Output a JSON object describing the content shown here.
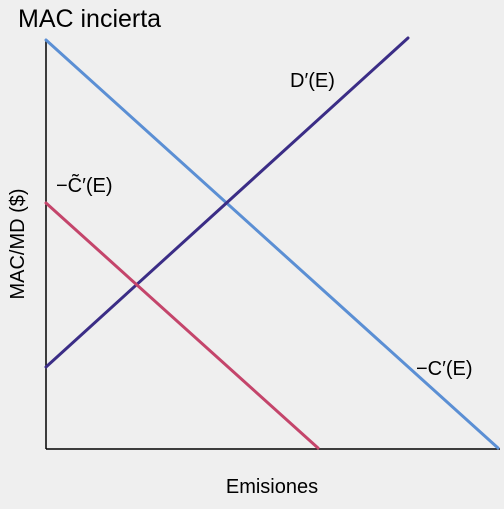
{
  "title": "MAC incierta",
  "x_axis_label": "Emisiones",
  "y_axis_label": "MAC/MD ($)",
  "curves": {
    "damage": {
      "label": "D′(E)",
      "color": "#3b2d86"
    },
    "cost": {
      "label": "−C′(E)",
      "color": "#5b8fd4"
    },
    "uncertain_cost": {
      "label": "−C̃′(E)",
      "color": "#c4456b"
    }
  },
  "axis_color": "#000000",
  "background": "#efefef"
}
